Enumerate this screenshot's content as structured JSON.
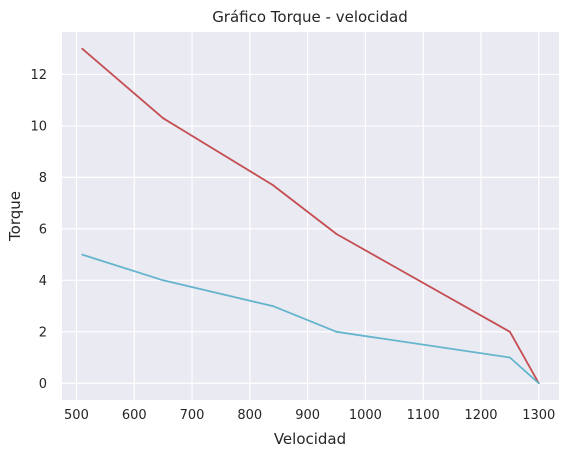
{
  "chart_data": {
    "type": "line",
    "title": "Gráfico Torque - velocidad",
    "xlabel": "Velocidad",
    "ylabel": "Torque",
    "xlim": [
      475,
      1335
    ],
    "ylim": [
      -0.65,
      13.65
    ],
    "xticks": [
      500,
      600,
      700,
      800,
      900,
      1000,
      1100,
      1200,
      1300
    ],
    "yticks": [
      0,
      2,
      4,
      6,
      8,
      10,
      12
    ],
    "grid": true,
    "background": "#eaeaf2",
    "series": [
      {
        "color": "#c44e52",
        "x": [
          510,
          650,
          840,
          950,
          1250,
          1300
        ],
        "y": [
          13,
          10.3,
          7.7,
          5.8,
          2,
          0
        ]
      },
      {
        "color": "#64b5cd",
        "x": [
          510,
          650,
          840,
          950,
          1250,
          1300
        ],
        "y": [
          5,
          4,
          3,
          2,
          1,
          0
        ]
      }
    ]
  }
}
